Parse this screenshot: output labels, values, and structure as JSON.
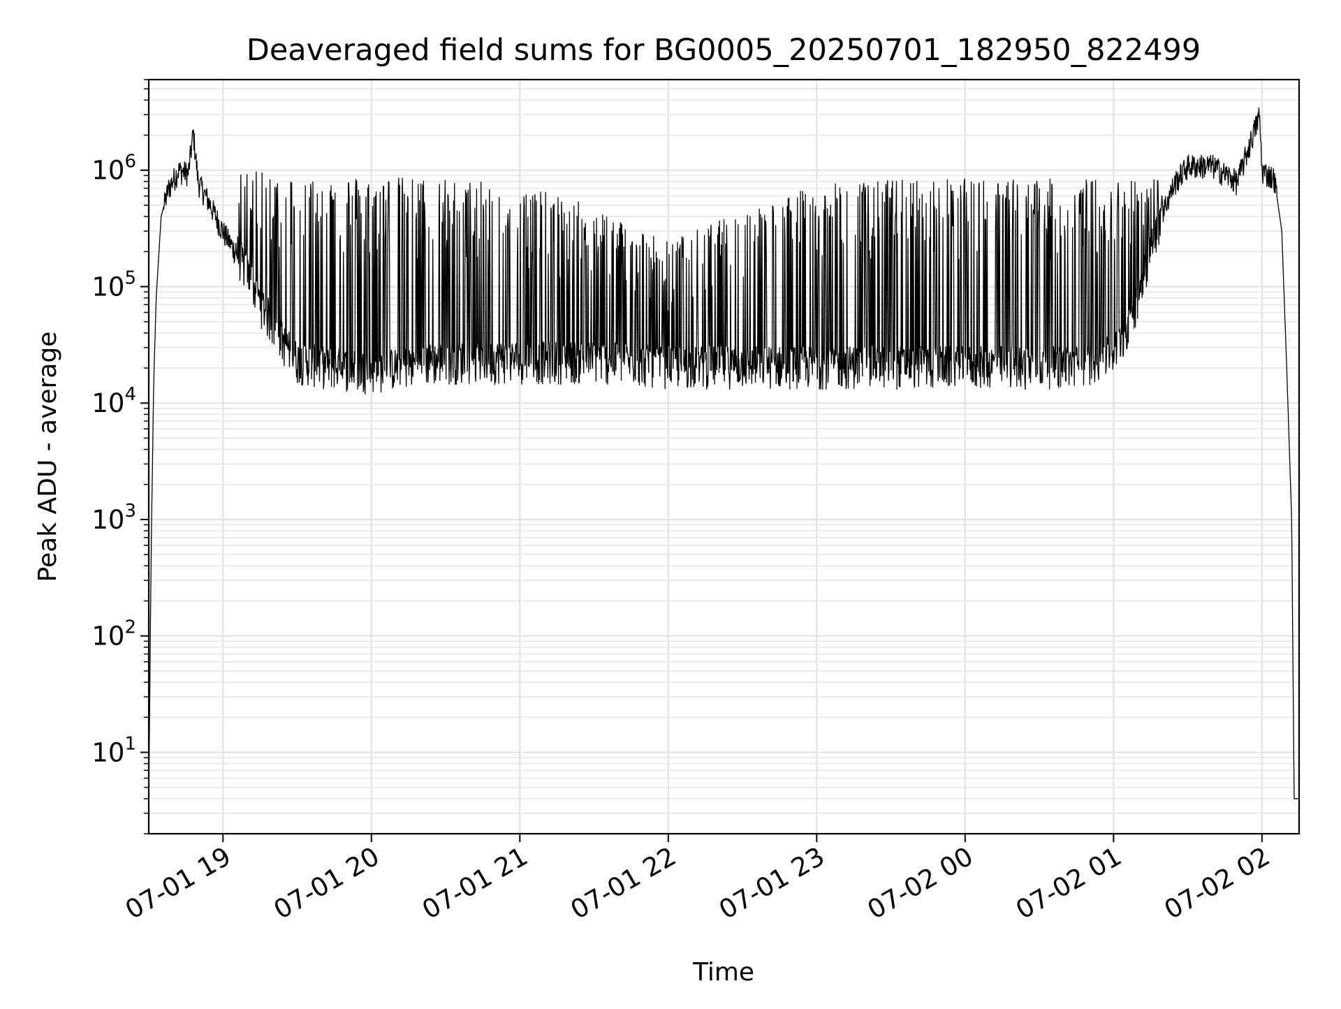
{
  "chart_data": {
    "type": "line",
    "title": "Deaveraged field sums for BG0005_20250701_182950_822499",
    "xlabel": "Time",
    "ylabel": "Peak ADU - average",
    "y_scale": "log",
    "x_range": [
      "07-01 18:30",
      "07-02 02:15"
    ],
    "ylim": [
      2,
      6000000
    ],
    "grid": true,
    "x_ticks": [
      {
        "time": "07-01 19:00",
        "label": "07-01 19"
      },
      {
        "time": "07-01 20:00",
        "label": "07-01 20"
      },
      {
        "time": "07-01 21:00",
        "label": "07-01 21"
      },
      {
        "time": "07-01 22:00",
        "label": "07-01 22"
      },
      {
        "time": "07-01 23:00",
        "label": "07-01 23"
      },
      {
        "time": "07-02 00:00",
        "label": "07-02 00"
      },
      {
        "time": "07-02 01:00",
        "label": "07-02 01"
      },
      {
        "time": "07-02 02:00",
        "label": "07-02 02"
      }
    ],
    "y_ticks": [
      {
        "value": 10,
        "base": "10",
        "exp": "1"
      },
      {
        "value": 100,
        "base": "10",
        "exp": "2"
      },
      {
        "value": 1000,
        "base": "10",
        "exp": "3"
      },
      {
        "value": 10000,
        "base": "10",
        "exp": "4"
      },
      {
        "value": 100000,
        "base": "10",
        "exp": "5"
      },
      {
        "value": 1000000,
        "base": "10",
        "exp": "6"
      }
    ],
    "line_color": "#000000",
    "series": [
      {
        "points": [
          [
            "07-01 18:30",
            4
          ],
          [
            "07-01 18:31",
            600
          ],
          [
            "07-01 18:32",
            15000
          ],
          [
            "07-01 18:33",
            80000
          ],
          [
            "07-01 18:35",
            400000
          ],
          [
            "07-01 18:38",
            700000
          ],
          [
            "07-01 18:42",
            1000000
          ],
          [
            "07-01 18:46",
            950000
          ],
          [
            "07-01 18:48",
            2100000
          ],
          [
            "07-01 18:50",
            800000
          ],
          [
            "07-01 18:55",
            500000
          ],
          [
            "07-01 19:00",
            300000
          ],
          [
            "07-01 19:05",
            200000
          ],
          [
            "07-01 19:10",
            120000
          ],
          [
            "07-01 19:15",
            70000
          ],
          [
            "07-01 19:20",
            45000
          ],
          [
            "07-01 19:25",
            30000
          ],
          [
            "07-01 19:30",
            22000
          ],
          [
            "07-01 19:40",
            20000
          ],
          [
            "07-01 20:00",
            18000
          ],
          [
            "07-01 20:30",
            22000
          ],
          [
            "07-01 21:00",
            22000
          ],
          [
            "07-01 21:30",
            22000
          ],
          [
            "07-01 22:00",
            20000
          ],
          [
            "07-01 22:30",
            20000
          ],
          [
            "07-01 23:00",
            20000
          ],
          [
            "07-01 23:30",
            20000
          ],
          [
            "07-02 00:00",
            20000
          ],
          [
            "07-02 00:30",
            20000
          ],
          [
            "07-02 00:45",
            20000
          ],
          [
            "07-02 01:00",
            25000
          ],
          [
            "07-02 01:05",
            40000
          ],
          [
            "07-02 01:10",
            80000
          ],
          [
            "07-02 01:15",
            200000
          ],
          [
            "07-02 01:20",
            450000
          ],
          [
            "07-02 01:25",
            800000
          ],
          [
            "07-02 01:30",
            1100000
          ],
          [
            "07-02 01:40",
            1100000
          ],
          [
            "07-02 01:50",
            800000
          ],
          [
            "07-02 01:59",
            3000000
          ],
          [
            "07-02 02:00",
            1000000
          ],
          [
            "07-02 02:05",
            850000
          ],
          [
            "07-02 02:08",
            300000
          ],
          [
            "07-02 02:10",
            20000
          ],
          [
            "07-02 02:12",
            1000
          ],
          [
            "07-02 02:13",
            4
          ],
          [
            "07-02 02:15",
            4
          ]
        ],
        "spike_ceilings": [
          [
            "07-01 19:10",
            1000000
          ],
          [
            "07-01 19:30",
            900000
          ],
          [
            "07-01 20:00",
            900000
          ],
          [
            "07-01 20:30",
            850000
          ],
          [
            "07-01 21:00",
            750000
          ],
          [
            "07-01 21:30",
            500000
          ],
          [
            "07-01 22:00",
            250000
          ],
          [
            "07-01 22:30",
            450000
          ],
          [
            "07-01 23:00",
            750000
          ],
          [
            "07-01 23:30",
            850000
          ],
          [
            "07-02 00:00",
            850000
          ],
          [
            "07-02 00:30",
            850000
          ],
          [
            "07-02 01:00",
            850000
          ],
          [
            "07-02 01:15",
            900000
          ]
        ]
      }
    ]
  }
}
